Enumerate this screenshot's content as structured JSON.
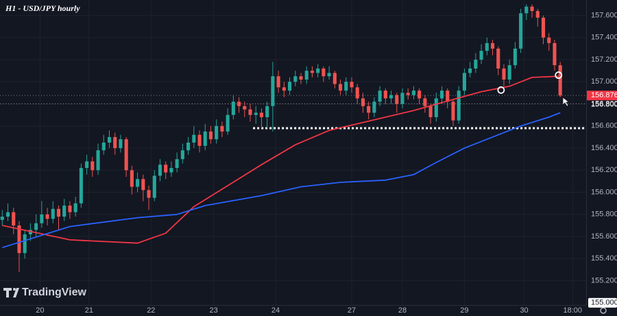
{
  "chart_data": {
    "type": "candlestick",
    "title": "H1 - USD/JPY hourly",
    "logo": "TradingView",
    "colors": {
      "up": "#26a69a",
      "down": "#ef5350"
    },
    "open": [
      155.75,
      155.78,
      155.82,
      155.7,
      155.45,
      155.62,
      155.66,
      155.72,
      155.8,
      155.76,
      155.85,
      155.78,
      155.88,
      155.82,
      155.9,
      156.22,
      156.28,
      156.2,
      156.38,
      156.45,
      156.5,
      156.4,
      156.48,
      156.2,
      156.05,
      156.12,
      156.02,
      155.95,
      156.15,
      156.25,
      156.18,
      156.22,
      156.3,
      156.38,
      156.45,
      156.52,
      156.42,
      156.55,
      156.48,
      156.6,
      156.55,
      156.7,
      156.82,
      156.78,
      156.75,
      156.7,
      156.72,
      156.68,
      156.78,
      157.05,
      156.95,
      156.92,
      157.0,
      157.05,
      157.02,
      157.1,
      157.08,
      157.12,
      157.05,
      157.08,
      156.98,
      156.92,
      157.0,
      156.95,
      156.85,
      156.78,
      156.72,
      156.82,
      156.92,
      156.85,
      156.88,
      156.8,
      156.9,
      156.88,
      156.92,
      156.85,
      156.78,
      156.68,
      156.85,
      156.92,
      156.82,
      156.65,
      156.92,
      157.08,
      157.12,
      157.2,
      157.28,
      157.35,
      157.3,
      157.12,
      157.02,
      157.15,
      157.3,
      157.62,
      157.68,
      157.64,
      157.58,
      157.4,
      157.35,
      157.15
    ],
    "high": [
      155.84,
      155.9,
      155.86,
      155.74,
      155.66,
      155.72,
      155.8,
      155.92,
      155.86,
      155.92,
      155.88,
      155.94,
      155.92,
      155.96,
      156.26,
      156.34,
      156.32,
      156.44,
      156.52,
      156.56,
      156.54,
      156.52,
      156.5,
      156.24,
      156.18,
      156.16,
      156.06,
      156.2,
      156.3,
      156.28,
      156.28,
      156.36,
      156.44,
      156.5,
      156.6,
      156.56,
      156.62,
      156.6,
      156.66,
      156.64,
      156.76,
      156.88,
      156.86,
      156.82,
      156.8,
      156.78,
      156.76,
      156.82,
      157.18,
      157.1,
      157.0,
      157.04,
      157.1,
      157.08,
      157.14,
      157.14,
      157.16,
      157.14,
      157.14,
      157.1,
      157.02,
      157.04,
      157.04,
      156.98,
      156.9,
      156.82,
      156.86,
      156.96,
      156.94,
      156.92,
      156.9,
      156.94,
      156.94,
      156.96,
      156.94,
      156.88,
      156.8,
      156.9,
      156.96,
      156.94,
      156.84,
      156.96,
      157.12,
      157.18,
      157.26,
      157.34,
      157.4,
      157.38,
      157.32,
      157.16,
      157.2,
      157.36,
      157.66,
      157.7,
      157.7,
      157.66,
      157.6,
      157.44,
      157.38,
      157.18
    ],
    "low": [
      155.7,
      155.74,
      155.62,
      155.28,
      155.4,
      155.56,
      155.6,
      155.68,
      155.7,
      155.72,
      155.66,
      155.74,
      155.76,
      155.78,
      155.86,
      156.16,
      156.14,
      156.16,
      156.34,
      156.4,
      156.34,
      156.36,
      156.14,
      155.98,
      156.0,
      155.92,
      155.84,
      155.92,
      156.1,
      156.12,
      156.14,
      156.18,
      156.26,
      156.34,
      156.4,
      156.36,
      156.38,
      156.44,
      156.44,
      156.5,
      156.52,
      156.66,
      156.72,
      156.68,
      156.64,
      156.62,
      156.58,
      156.58,
      156.55,
      156.9,
      156.86,
      156.88,
      156.96,
      156.98,
      156.98,
      157.04,
      157.04,
      157.0,
      157.02,
      156.94,
      156.88,
      156.88,
      156.9,
      156.8,
      156.72,
      156.66,
      156.68,
      156.78,
      156.8,
      156.8,
      156.72,
      156.76,
      156.84,
      156.84,
      156.8,
      156.72,
      156.62,
      156.64,
      156.8,
      156.76,
      156.6,
      156.62,
      156.88,
      157.04,
      157.08,
      157.16,
      157.24,
      157.24,
      157.06,
      156.96,
      156.98,
      157.12,
      157.26,
      157.56,
      157.58,
      157.5,
      157.34,
      157.28,
      157.1,
      156.86
    ],
    "close": [
      155.78,
      155.82,
      155.7,
      155.45,
      155.62,
      155.66,
      155.72,
      155.8,
      155.76,
      155.85,
      155.78,
      155.88,
      155.82,
      155.9,
      156.22,
      156.28,
      156.2,
      156.38,
      156.45,
      156.5,
      156.4,
      156.48,
      156.2,
      156.05,
      156.12,
      156.02,
      155.95,
      156.15,
      156.25,
      156.18,
      156.22,
      156.3,
      156.38,
      156.45,
      156.52,
      156.42,
      156.55,
      156.48,
      156.6,
      156.55,
      156.7,
      156.82,
      156.78,
      156.75,
      156.7,
      156.72,
      156.68,
      156.78,
      157.05,
      156.95,
      156.92,
      157.0,
      157.05,
      157.02,
      157.1,
      157.08,
      157.12,
      157.05,
      157.08,
      156.98,
      156.92,
      157.0,
      156.95,
      156.85,
      156.78,
      156.72,
      156.82,
      156.92,
      156.85,
      156.88,
      156.8,
      156.9,
      156.88,
      156.92,
      156.85,
      156.78,
      156.68,
      156.85,
      156.92,
      156.82,
      156.65,
      156.92,
      157.08,
      157.12,
      157.2,
      157.28,
      157.35,
      157.3,
      157.12,
      157.02,
      157.15,
      157.3,
      157.62,
      157.68,
      157.64,
      157.58,
      157.4,
      157.35,
      157.15,
      156.876
    ],
    "lines": [
      {
        "color": "#f23645",
        "x": [
          0,
          12,
          24,
          29,
          34,
          40,
          46,
          52,
          58,
          63,
          68,
          73,
          80,
          85,
          90,
          94,
          99
        ],
        "values": [
          155.7,
          155.57,
          155.54,
          155.63,
          155.87,
          156.06,
          156.25,
          156.43,
          156.56,
          156.62,
          156.68,
          156.74,
          156.84,
          156.91,
          156.96,
          157.04,
          157.05
        ]
      },
      {
        "color": "#2962ff",
        "x": [
          0,
          12,
          24,
          31,
          36,
          46,
          53,
          60,
          68,
          73,
          77,
          82,
          87,
          92,
          97,
          99
        ],
        "values": [
          155.5,
          155.69,
          155.77,
          155.8,
          155.88,
          155.97,
          156.05,
          156.09,
          156.11,
          156.16,
          156.27,
          156.4,
          156.5,
          156.6,
          156.68,
          156.72
        ]
      }
    ],
    "support_level": {
      "value": 156.58,
      "x_start": 44.5
    },
    "markers": [
      {
        "x": 88.5,
        "value": 156.925
      },
      {
        "x": 98.7,
        "value": 157.06
      }
    ],
    "price_lines": [
      {
        "value": 156.876,
        "label": "156.876"
      },
      {
        "value": 156.8,
        "label": "156.800"
      }
    ],
    "crosshair_label": {
      "value": 155.0,
      "label": "155.000"
    },
    "xlim": [
      -0.4,
      103.6
    ],
    "ylim": [
      154.98,
      157.74
    ],
    "xticks": [
      {
        "value": 6.7,
        "label": "20"
      },
      {
        "value": 15.4,
        "label": "21"
      },
      {
        "value": 26.4,
        "label": "22"
      },
      {
        "value": 37.5,
        "label": "23"
      },
      {
        "value": 48.5,
        "label": "24"
      },
      {
        "value": 62,
        "label": "27"
      },
      {
        "value": 71,
        "label": "28"
      },
      {
        "value": 82,
        "label": "29"
      },
      {
        "value": 92.6,
        "label": "30"
      },
      {
        "value": 101.2,
        "label": "18:00"
      }
    ],
    "yticks": [
      {
        "value": 155.2,
        "label": "155.200"
      },
      {
        "value": 155.4,
        "label": "155.400"
      },
      {
        "value": 155.6,
        "label": "155.600"
      },
      {
        "value": 155.8,
        "label": "155.800"
      },
      {
        "value": 156.0,
        "label": "156.000"
      },
      {
        "value": 156.2,
        "label": "156.200"
      },
      {
        "value": 156.4,
        "label": "156.400"
      },
      {
        "value": 156.6,
        "label": "156.600"
      },
      {
        "value": 156.8,
        "label": "156.800"
      },
      {
        "value": 157.0,
        "label": "157.000"
      },
      {
        "value": 157.2,
        "label": "157.200"
      },
      {
        "value": 157.4,
        "label": "157.400"
      },
      {
        "value": 157.6,
        "label": "157.600"
      }
    ],
    "grid": true
  }
}
